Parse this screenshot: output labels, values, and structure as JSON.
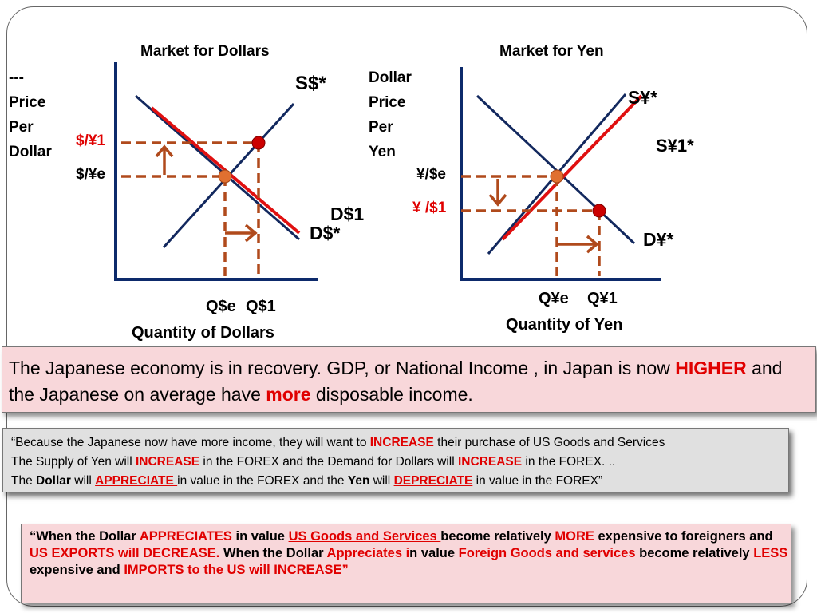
{
  "left_graph": {
    "title": "Market for Dollars",
    "y_label": "---\nPrice\nPer\nDollar",
    "supply": "S$*",
    "demand_new": "D$1",
    "demand_orig": "D$*",
    "price_new": "$/¥1",
    "price_eq": "$/¥e",
    "qty_eq": "Q$e",
    "qty_new": "Q$1",
    "x_label": "Quantity of Dollars"
  },
  "right_graph": {
    "title": "Market for Yen",
    "y_label": "Dollar\nPrice\nPer\nYen",
    "supply_orig": "S¥*",
    "supply_new": "S¥1*",
    "demand": "D¥*",
    "price_eq": "¥/$e",
    "price_new": "¥ /$1",
    "qty_eq": "Q¥e",
    "qty_new": "Q¥1",
    "x_label": "Quantity of Yen"
  },
  "box1": {
    "p1": "The Japanese economy is in recovery.  GDP, or National Income , in Japan is now ",
    "higher": "HIGHER",
    "p2": "  and the Japanese on average have ",
    "more": "more",
    "p3": " disposable income."
  },
  "box2": {
    "l1a": "“Because the Japanese  now have more  income, they will want to ",
    "l1b": "INCREASE",
    "l1c": " their purchase of US Goods and Services",
    "l2a": " The Supply of Yen will ",
    "l2b": "INCREASE",
    "l2c": " in the FOREX and the Demand for Dollars will  ",
    "l2d": "INCREASE",
    "l2e": " in the FOREX. ..",
    "l3a": " The ",
    "l3b": "Dollar",
    "l3c": " will ",
    "l3d": "APPRECIATE ",
    "l3e": "in value in the FOREX and the ",
    "l3f": "Yen",
    "l3g": "  will ",
    "l3h": "DEPRECIATE",
    "l3i": " in value in the FOREX”"
  },
  "box3": {
    "a": "“When the Dollar ",
    "b": "APPRECIATES",
    "c": " in value ",
    "d": "US Goods and Services ",
    "e": "become relatively ",
    "f": "MORE",
    "g": " expensive to foreigners and ",
    "h": "US EXPORTS will DECREASE.",
    "i": "  When the Dollar ",
    "j": "Appreciates i",
    "k": "n value ",
    "l": "Foreign Goods and services",
    "m": " become relatively ",
    "n": "LESS",
    "o": " expensive and ",
    "p": "IMPORTS to the US will INCREASE”"
  },
  "colors": {
    "axis": "#0d2a6b",
    "curve": "#12285e",
    "shift": "#e01010",
    "dashed": "#b04a1c",
    "eq_point": "#e07030",
    "new_point": "#cc0000",
    "red_text": "#e00000"
  }
}
